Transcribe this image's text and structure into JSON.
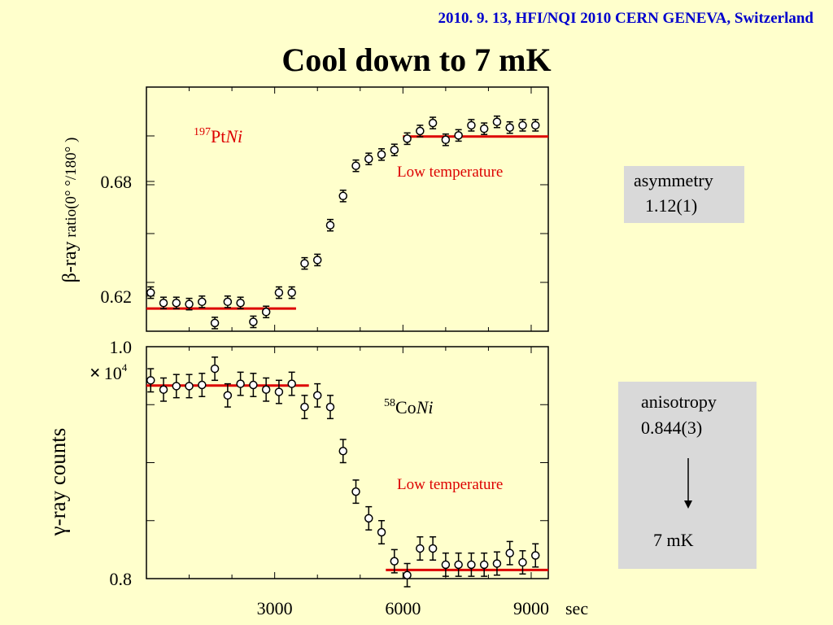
{
  "header": {
    "text": "2010. 9. 13, HFI/NQI 2010 CERN GENEVA, Switzerland"
  },
  "title": "Cool down to 7 mK",
  "colors": {
    "background": "#ffffcc",
    "header": "#0000cc",
    "fit_line": "#dd0000",
    "label": "#dd0000",
    "box": "#d9d9d9"
  },
  "asymmetry_box": {
    "label": "asymmetry",
    "value": "1.12(1)"
  },
  "anisotropy_box": {
    "label": "anisotropy",
    "value": "0.844(3)",
    "result": "7 mK",
    "arrow": "down-arrow-icon"
  },
  "chart_data": [
    {
      "type": "scatter",
      "panel": "top",
      "sample": {
        "mass": "197",
        "element": "Pt",
        "host": "Ni"
      },
      "annotation": "Low temperature",
      "ylabel": {
        "symbol": "β",
        "text_large": "-ray",
        "text_small": " ratio(0° °/180° )"
      },
      "yticks_labeled": [
        {
          "value": 0.62,
          "label": "0.62"
        },
        {
          "value": 0.68,
          "label": "0.68"
        }
      ],
      "ylim": [
        0.6016,
        0.7294
      ],
      "xlim": [
        0,
        9400
      ],
      "x": [
        100,
        400,
        700,
        1000,
        1300,
        1600,
        1900,
        2200,
        2500,
        2800,
        3100,
        3400,
        3700,
        4000,
        4300,
        4600,
        4900,
        5200,
        5500,
        5800,
        6100,
        6400,
        6700,
        7000,
        7300,
        7600,
        7900,
        8200,
        8500,
        8800,
        9100
      ],
      "y": [
        0.6218,
        0.6164,
        0.6164,
        0.6158,
        0.617,
        0.6059,
        0.617,
        0.6164,
        0.6065,
        0.6117,
        0.6218,
        0.6218,
        0.6371,
        0.6389,
        0.6571,
        0.6724,
        0.6882,
        0.6918,
        0.6941,
        0.6965,
        0.7024,
        0.7064,
        0.7106,
        0.7018,
        0.7041,
        0.7094,
        0.7076,
        0.7112,
        0.7082,
        0.7094,
        0.7094
      ],
      "err": [
        0.003,
        0.003,
        0.003,
        0.003,
        0.003,
        0.003,
        0.003,
        0.003,
        0.003,
        0.003,
        0.003,
        0.003,
        0.003,
        0.003,
        0.003,
        0.003,
        0.003,
        0.003,
        0.003,
        0.003,
        0.003,
        0.003,
        0.003,
        0.003,
        0.003,
        0.003,
        0.003,
        0.003,
        0.003,
        0.003,
        0.003
      ],
      "fit_lines": [
        {
          "x": [
            0,
            3500
          ],
          "y": 0.6135
        },
        {
          "x": [
            6000,
            9400
          ],
          "y": 0.7035
        }
      ]
    },
    {
      "type": "scatter",
      "panel": "bottom",
      "sample": {
        "mass": "58",
        "element": "Co",
        "host": "Ni"
      },
      "annotation": "Low temperature",
      "ylabel": {
        "symbol": "γ",
        "text_large": "-ray counts"
      },
      "yticks_labeled": [
        {
          "value": 0.8,
          "label": "0.8"
        },
        {
          "value": 1.0,
          "label": "1.0"
        }
      ],
      "multiplier": {
        "times": "×",
        "base": "10",
        "exponent": "4"
      },
      "ylim": [
        0.8,
        1.0
      ],
      "xlim": [
        0,
        9400
      ],
      "xticks": [
        {
          "value": 3000,
          "label": "3000"
        },
        {
          "value": 6000,
          "label": "6000"
        },
        {
          "value": 9000,
          "label": "9000"
        }
      ],
      "xunit": "sec",
      "x": [
        100,
        400,
        700,
        1000,
        1300,
        1600,
        1900,
        2200,
        2500,
        2800,
        3100,
        3400,
        3700,
        4000,
        4300,
        4600,
        4900,
        5200,
        5500,
        5800,
        6100,
        6400,
        6700,
        7000,
        7300,
        7600,
        7900,
        8200,
        8500,
        8800,
        9100
      ],
      "y": [
        0.971,
        0.963,
        0.966,
        0.966,
        0.967,
        0.981,
        0.958,
        0.968,
        0.967,
        0.963,
        0.961,
        0.968,
        0.948,
        0.958,
        0.948,
        0.91,
        0.875,
        0.852,
        0.84,
        0.815,
        0.803,
        0.826,
        0.826,
        0.812,
        0.812,
        0.812,
        0.812,
        0.813,
        0.822,
        0.814,
        0.82
      ],
      "err": [
        0.01,
        0.01,
        0.01,
        0.01,
        0.01,
        0.01,
        0.01,
        0.01,
        0.01,
        0.01,
        0.01,
        0.01,
        0.01,
        0.01,
        0.01,
        0.01,
        0.01,
        0.01,
        0.01,
        0.01,
        0.01,
        0.01,
        0.01,
        0.01,
        0.01,
        0.01,
        0.01,
        0.01,
        0.01,
        0.01,
        0.01
      ],
      "fit_lines": [
        {
          "x": [
            0,
            3800
          ],
          "y": 0.9665
        },
        {
          "x": [
            5600,
            9400
          ],
          "y": 0.8075
        }
      ]
    }
  ]
}
